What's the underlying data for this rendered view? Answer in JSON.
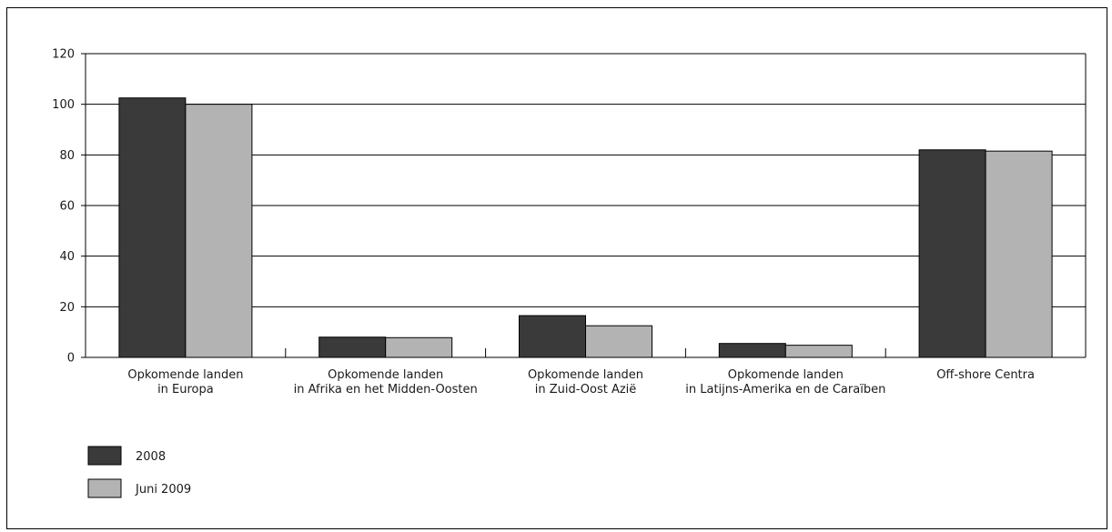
{
  "chart_data": {
    "type": "bar",
    "title": "",
    "xlabel": "",
    "ylabel": "",
    "ylim": [
      0,
      120
    ],
    "yticks": [
      0,
      20,
      40,
      60,
      80,
      100,
      120
    ],
    "grid": true,
    "legend_position": "bottom-left",
    "categories": [
      [
        "Opkomende landen",
        "in Europa"
      ],
      [
        "Opkomende landen",
        "in Afrika en het Midden-Oosten"
      ],
      [
        "Opkomende landen",
        "in Zuid-Oost Azië"
      ],
      [
        "Opkomende landen",
        "in Latijns-Amerika en de Caraïben"
      ],
      [
        "Off-shore Centra"
      ]
    ],
    "series": [
      {
        "name": "2008",
        "color": "#3a3a3a",
        "values": [
          102.5,
          8,
          16.5,
          5.5,
          82
        ]
      },
      {
        "name": "Juni 2009",
        "color": "#b3b3b3",
        "values": [
          100,
          7.8,
          12.5,
          4.8,
          81.5
        ]
      }
    ]
  }
}
